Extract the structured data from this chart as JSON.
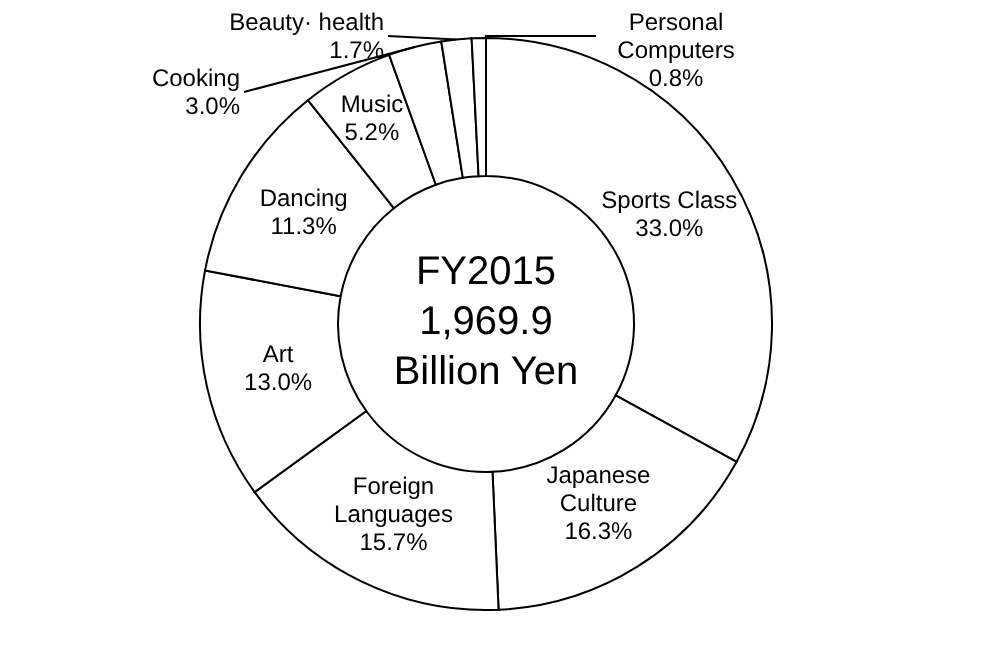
{
  "chart_data": {
    "type": "donut",
    "categories": [
      "Sports Class",
      "Japanese Culture",
      "Foreign Languages",
      "Art",
      "Dancing",
      "Music",
      "Cooking",
      "Beauty· health",
      "Personal Computers"
    ],
    "values": [
      33.0,
      16.3,
      15.7,
      13.0,
      11.3,
      5.2,
      3.0,
      1.7,
      0.8
    ],
    "value_labels": [
      "33.0%",
      "16.3%",
      "15.7%",
      "13.0%",
      "11.3%",
      "5.2%",
      "3.0%",
      "1.7%",
      "0.8%"
    ],
    "colors": [
      "#ffffff",
      "#ffffff",
      "#ffffff",
      "#ffffff",
      "#ffffff",
      "#ffffff",
      "#ffffff",
      "#ffffff",
      "#ffffff"
    ],
    "annotations": [
      "FY2015 1,969.9 Billion Yen"
    ],
    "legend": false
  }
}
